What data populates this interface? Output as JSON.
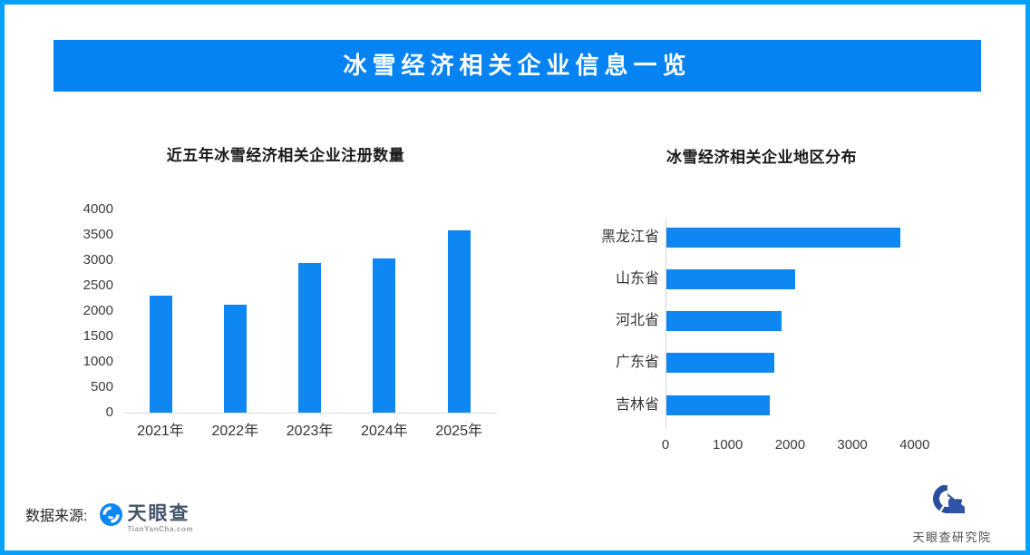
{
  "header": {
    "title": "冰雪经济相关企业信息一览"
  },
  "colors": {
    "frame_border": "#04a1fe",
    "banner_blue": "#0583f2",
    "bar_blue": "#0e87f2",
    "axis_gray": "#d9d9d9",
    "text_dark": "#262626"
  },
  "chart_data": [
    {
      "type": "bar",
      "title": "近五年冰雪经济相关企业注册数量",
      "categories": [
        "2021年",
        "2022年",
        "2023年",
        "2024年",
        "2025年"
      ],
      "values": [
        2310,
        2120,
        2950,
        3030,
        3590
      ],
      "xlabel": "",
      "ylabel": "",
      "ylim": [
        0,
        4000
      ],
      "yticks": [
        0,
        500,
        1000,
        1500,
        2000,
        2500,
        3000,
        3500,
        4000
      ],
      "grid": false,
      "legend_position": "none",
      "bar_color": "#0e87f2"
    },
    {
      "type": "bar-horizontal",
      "title": "冰雪经济相关企业地区分布",
      "categories": [
        "黑龙江省",
        "山东省",
        "河北省",
        "广东省",
        "吉林省"
      ],
      "values": [
        3760,
        2060,
        1850,
        1730,
        1660
      ],
      "xlabel": "",
      "ylabel": "",
      "xlim": [
        0,
        4600
      ],
      "xticks": [
        0,
        1000,
        2000,
        3000,
        4000
      ],
      "grid": false,
      "legend_position": "none",
      "bar_color": "#0e87f2"
    }
  ],
  "footer": {
    "source_label": "数据来源:",
    "tyc": {
      "name": "天眼查",
      "domain": "TianYanCha.com"
    },
    "institute": "天眼查研究院"
  }
}
